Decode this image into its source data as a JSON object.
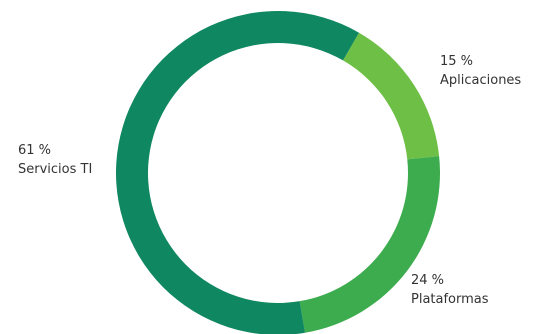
{
  "chart_data": {
    "type": "pie",
    "variant": "donut",
    "title": "",
    "slices": [
      {
        "label": "Aplicaciones",
        "value": 15,
        "percent_label": "15 %",
        "color": "#6ebf45"
      },
      {
        "label": "Plataformas",
        "value": 24,
        "percent_label": "24 %",
        "color": "#3dac4e"
      },
      {
        "label": "Servicios TI",
        "value": 61,
        "percent_label": "61 %",
        "color": "#0f8760"
      }
    ],
    "legend": "none",
    "labels_position": "outside"
  }
}
